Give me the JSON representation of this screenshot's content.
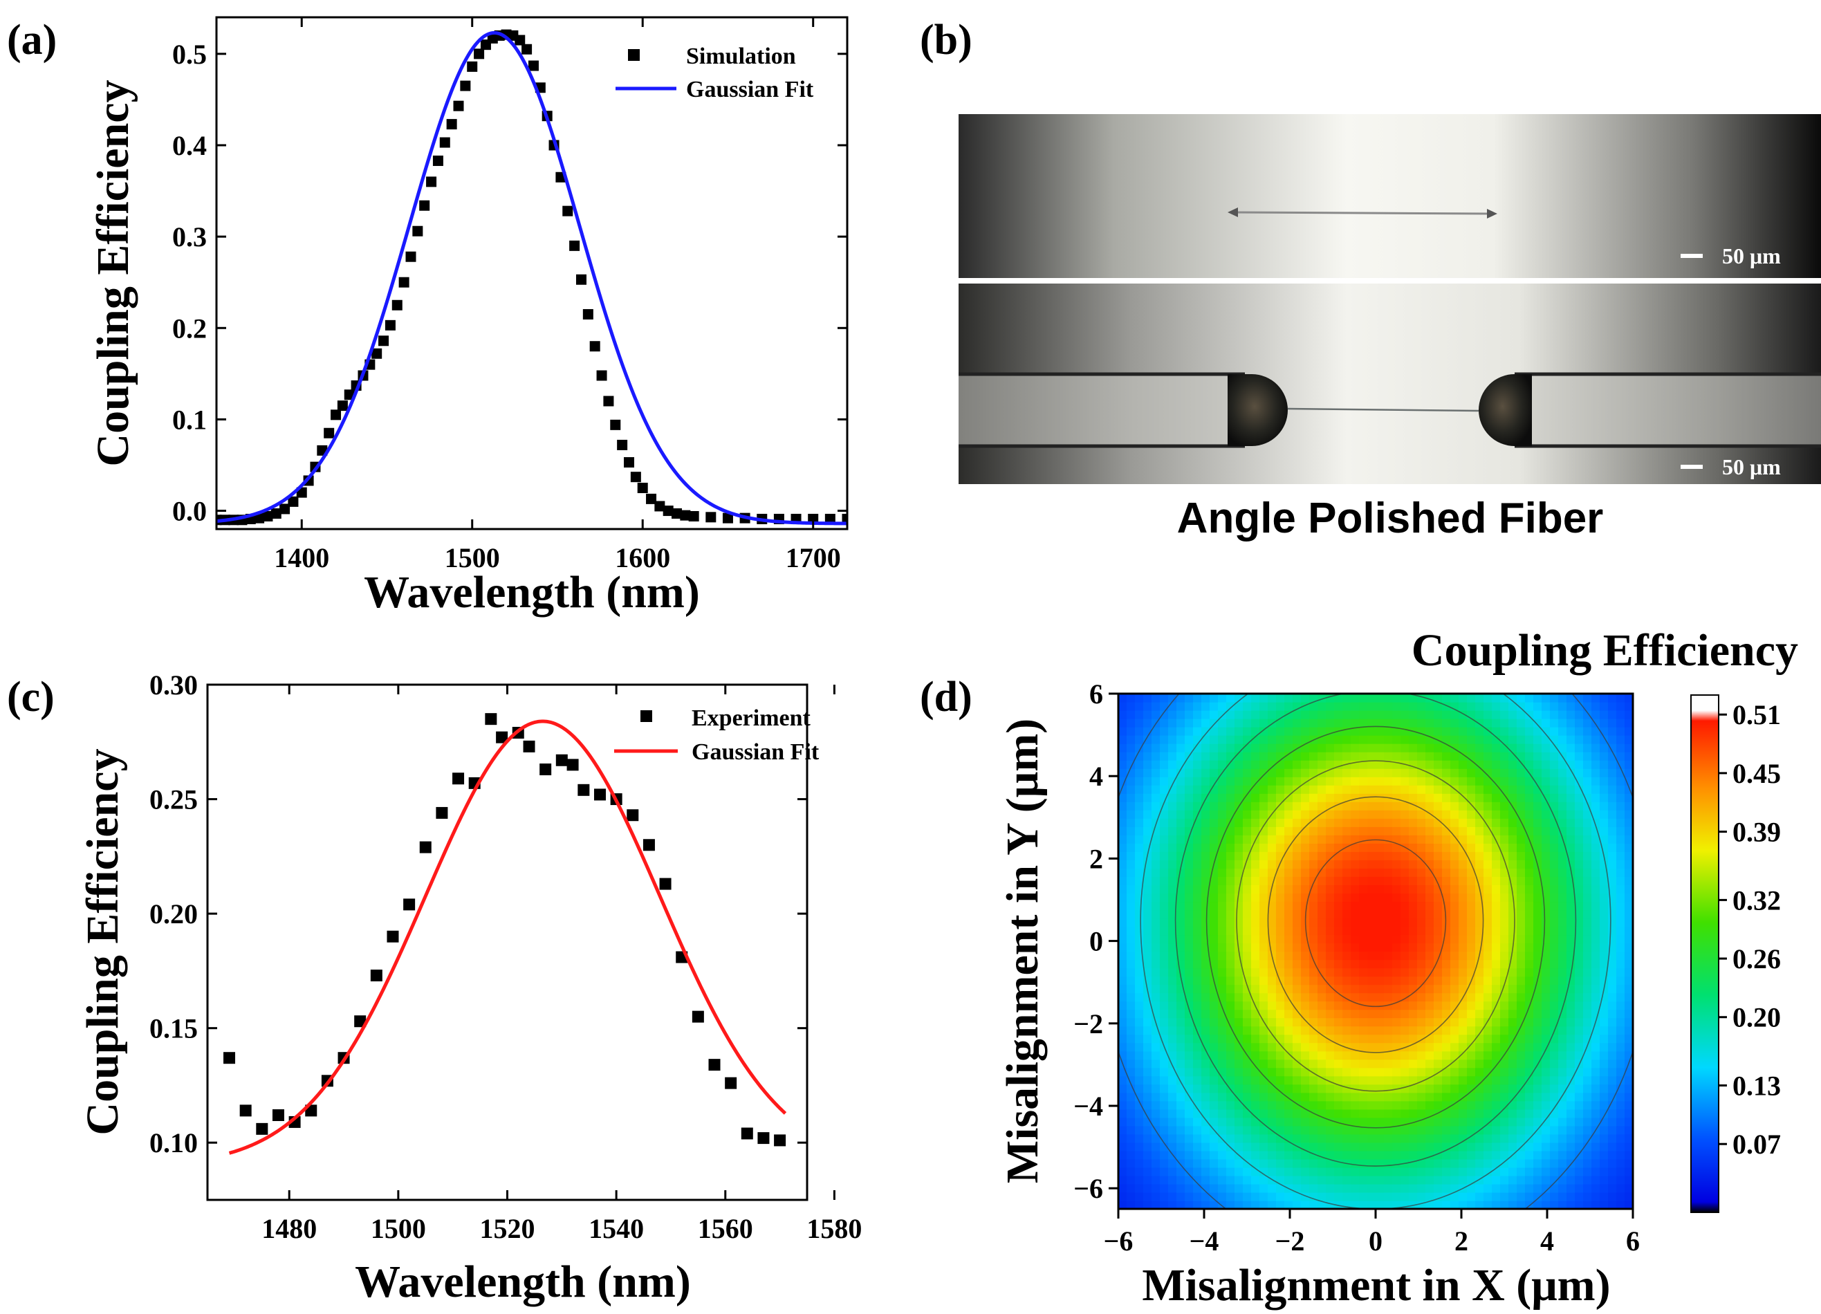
{
  "panels": {
    "a": "(a)",
    "b": "(b)",
    "c": "(c)",
    "d": "(d)"
  },
  "chart_data": [
    {
      "id": "a",
      "type": "scatter",
      "xlabel": "Wavelength (nm)",
      "ylabel": "Coupling Efficiency",
      "xlim": [
        1350,
        1720
      ],
      "ylim": [
        -0.02,
        0.54
      ],
      "xticks": [
        1400,
        1500,
        1600,
        1700
      ],
      "yticks": [
        0.0,
        0.1,
        0.2,
        0.3,
        0.4,
        0.5
      ],
      "ytick_labels": [
        "0.0",
        "0.1",
        "0.2",
        "0.3",
        "0.4",
        "0.5"
      ],
      "legend": [
        "Simulation",
        "Gaussian Fit"
      ],
      "colors": {
        "markers": "#000000",
        "fit": "#1a1aff"
      },
      "series": [
        {
          "name": "Simulation",
          "x": [
            1350,
            1355,
            1360,
            1365,
            1370,
            1375,
            1380,
            1385,
            1390,
            1395,
            1400,
            1404,
            1408,
            1412,
            1416,
            1420,
            1424,
            1428,
            1432,
            1436,
            1440,
            1444,
            1448,
            1452,
            1456,
            1460,
            1464,
            1468,
            1472,
            1476,
            1480,
            1484,
            1488,
            1492,
            1496,
            1500,
            1504,
            1508,
            1512,
            1516,
            1520,
            1524,
            1528,
            1532,
            1536,
            1540,
            1544,
            1548,
            1552,
            1556,
            1560,
            1564,
            1568,
            1572,
            1576,
            1580,
            1584,
            1588,
            1592,
            1596,
            1600,
            1605,
            1610,
            1615,
            1620,
            1625,
            1630,
            1640,
            1650,
            1660,
            1670,
            1680,
            1690,
            1700,
            1710,
            1720
          ],
          "y": [
            -0.01,
            -0.01,
            -0.01,
            -0.01,
            -0.009,
            -0.008,
            -0.006,
            -0.003,
            0.002,
            0.01,
            0.02,
            0.033,
            0.048,
            0.066,
            0.085,
            0.105,
            0.115,
            0.127,
            0.137,
            0.148,
            0.16,
            0.172,
            0.186,
            0.203,
            0.225,
            0.25,
            0.278,
            0.306,
            0.334,
            0.36,
            0.383,
            0.403,
            0.423,
            0.443,
            0.465,
            0.486,
            0.5,
            0.51,
            0.517,
            0.52,
            0.521,
            0.52,
            0.515,
            0.505,
            0.487,
            0.463,
            0.432,
            0.4,
            0.365,
            0.328,
            0.29,
            0.253,
            0.215,
            0.18,
            0.148,
            0.12,
            0.094,
            0.072,
            0.053,
            0.037,
            0.025,
            0.013,
            0.005,
            0.0,
            -0.003,
            -0.005,
            -0.006,
            -0.007,
            -0.008,
            -0.008,
            -0.009,
            -0.009,
            -0.009,
            -0.009,
            -0.009,
            -0.009
          ]
        },
        {
          "name": "Gaussian Fit",
          "model": "gaussian",
          "y0": -0.014,
          "A": 0.537,
          "xc": 1513,
          "w": 100
        }
      ]
    },
    {
      "id": "c",
      "type": "scatter",
      "xlabel": "Wavelength (nm)",
      "ylabel": "Coupling Efficiency",
      "xlim": [
        1465,
        1575
      ],
      "ylim": [
        0.075,
        0.3
      ],
      "xticks": [
        1480,
        1500,
        1520,
        1540,
        1560,
        1580
      ],
      "yticks": [
        0.1,
        0.15,
        0.2,
        0.25,
        0.3
      ],
      "ytick_labels": [
        "0.10",
        "0.15",
        "0.20",
        "0.25",
        "0.30"
      ],
      "legend": [
        "Experiment",
        "Gaussian Fit"
      ],
      "colors": {
        "markers": "#000000",
        "fit": "#ff1a1a"
      },
      "series": [
        {
          "name": "Experiment",
          "x": [
            1469,
            1472,
            1475,
            1478,
            1481,
            1484,
            1487,
            1490,
            1493,
            1496,
            1499,
            1502,
            1505,
            1508,
            1511,
            1514,
            1517,
            1519,
            1522,
            1524,
            1527,
            1530,
            1532,
            1534,
            1537,
            1540,
            1543,
            1546,
            1549,
            1552,
            1555,
            1558,
            1561,
            1564,
            1567,
            1570
          ],
          "y": [
            0.137,
            0.114,
            0.106,
            0.112,
            0.109,
            0.114,
            0.127,
            0.137,
            0.153,
            0.173,
            0.19,
            0.204,
            0.229,
            0.244,
            0.259,
            0.257,
            0.285,
            0.277,
            0.279,
            0.273,
            0.263,
            0.267,
            0.265,
            0.254,
            0.252,
            0.25,
            0.243,
            0.23,
            0.213,
            0.181,
            0.155,
            0.134,
            0.126,
            0.104,
            0.102,
            0.101
          ]
        },
        {
          "name": "Gaussian Fit",
          "model": "gaussian",
          "y0": 0.09,
          "A": 0.194,
          "xc": 1526.5,
          "w": 43,
          "xrange": [
            1469,
            1571
          ]
        }
      ]
    },
    {
      "id": "d",
      "type": "heatmap",
      "title": "Coupling Efficiency",
      "xlabel": "Misalignment in X (μm)",
      "ylabel": "Misalignment in Y (μm)",
      "xlim": [
        -6,
        6
      ],
      "ylim": [
        -6.5,
        6
      ],
      "xticks": [
        -6,
        -4,
        -2,
        0,
        2,
        4,
        6
      ],
      "yticks": [
        -6,
        -4,
        -2,
        0,
        2,
        4,
        6
      ],
      "xtick_labels": [
        "−6",
        "−4",
        "−2",
        "0",
        "2",
        "4",
        "6"
      ],
      "ytick_labels": [
        "−6",
        "−4",
        "−2",
        "0",
        "2",
        "4",
        "6"
      ],
      "colorbar_ticks": [
        "0.51",
        "0.45",
        "0.39",
        "0.32",
        "0.26",
        "0.20",
        "0.13",
        "0.07"
      ],
      "colorbar_values": [
        0.51,
        0.45,
        0.39,
        0.32,
        0.26,
        0.2,
        0.13,
        0.07
      ],
      "zlim": [
        0.0,
        0.53
      ],
      "model": {
        "peak": 0.51,
        "x0": 0,
        "y0": 0.5,
        "sigma_x": 3.6,
        "sigma_y_up": 4.3,
        "sigma_y_down": 4.6
      },
      "contour_levels": [
        0.46,
        0.4,
        0.34,
        0.28,
        0.22,
        0.16,
        0.1
      ]
    }
  ],
  "image_panel": {
    "caption": "Angle Polished Fiber",
    "scale_bar_top": "50 μm",
    "scale_bar_bottom": "50 μm"
  }
}
